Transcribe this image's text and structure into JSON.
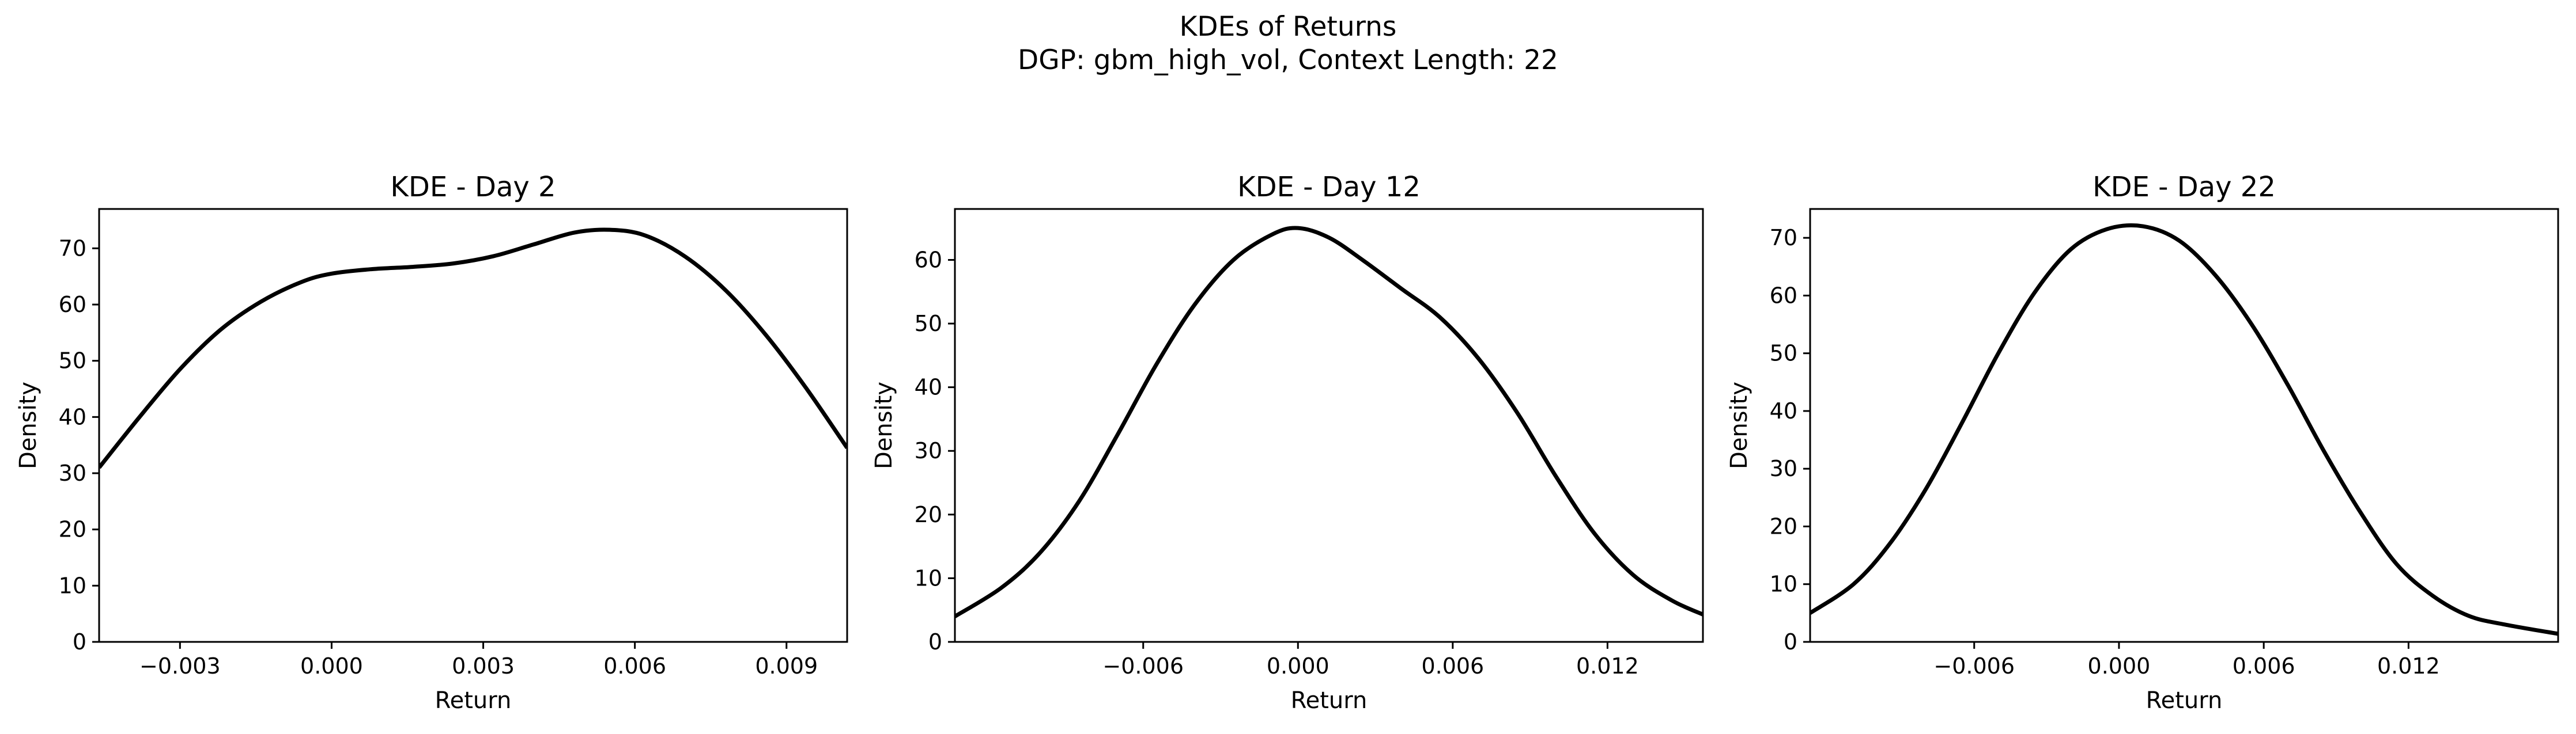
{
  "figure": {
    "title_line1": "KDEs of Returns",
    "title_line2": "DGP: gbm_high_vol, Context Length: 22"
  },
  "chart_data": [
    {
      "type": "line",
      "title": "KDE - Day 2",
      "xlabel": "Return",
      "ylabel": "Density",
      "xlim": [
        -0.0046,
        0.0102
      ],
      "ylim": [
        0,
        77
      ],
      "xticks": [
        -0.003,
        0.0,
        0.003,
        0.006,
        0.009
      ],
      "xtick_labels": [
        "−0.003",
        "0.000",
        "0.003",
        "0.006",
        "0.009"
      ],
      "yticks": [
        0,
        10,
        20,
        30,
        40,
        50,
        60,
        70
      ],
      "ytick_labels": [
        "0",
        "10",
        "20",
        "30",
        "40",
        "50",
        "60",
        "70"
      ],
      "color": "#000000",
      "series": [
        {
          "x": [
            -0.0046,
            -0.0038,
            -0.003,
            -0.0022,
            -0.0014,
            -0.0006,
            0.0,
            0.0008,
            0.0016,
            0.0024,
            0.0032,
            0.004,
            0.0048,
            0.0055,
            0.0062,
            0.007,
            0.0078,
            0.0086,
            0.0094,
            0.0102
          ],
          "y": [
            31,
            40,
            48.5,
            55.5,
            60.5,
            64,
            65.5,
            66.3,
            66.7,
            67.3,
            68.6,
            70.7,
            72.8,
            73.3,
            72.3,
            68.5,
            62.5,
            54.5,
            45,
            34.5
          ]
        }
      ]
    },
    {
      "type": "line",
      "title": "KDE - Day 12",
      "xlabel": "Return",
      "ylabel": "Density",
      "xlim": [
        -0.0133,
        0.0157
      ],
      "ylim": [
        0,
        68
      ],
      "xticks": [
        -0.006,
        0.0,
        0.006,
        0.012
      ],
      "xtick_labels": [
        "−0.006",
        "0.000",
        "0.006",
        "0.012"
      ],
      "yticks": [
        0,
        10,
        20,
        30,
        40,
        50,
        60
      ],
      "ytick_labels": [
        "0",
        "10",
        "20",
        "30",
        "40",
        "50",
        "60"
      ],
      "color": "#000000",
      "series": [
        {
          "x": [
            -0.0133,
            -0.0115,
            -0.01,
            -0.0085,
            -0.007,
            -0.0055,
            -0.004,
            -0.0025,
            -0.001,
            0.0,
            0.0012,
            0.0025,
            0.004,
            0.0055,
            0.007,
            0.0085,
            0.01,
            0.0115,
            0.013,
            0.0145,
            0.0157
          ],
          "y": [
            4,
            8.5,
            14,
            22,
            32.5,
            43.5,
            53,
            60,
            64,
            65,
            63.5,
            60,
            55.5,
            51,
            44.5,
            36,
            26,
            17,
            10.5,
            6.5,
            4.3
          ]
        }
      ]
    },
    {
      "type": "line",
      "title": "KDE - Day 22",
      "xlabel": "Return",
      "ylabel": "Density",
      "xlim": [
        -0.0128,
        0.0182
      ],
      "ylim": [
        0,
        75
      ],
      "xticks": [
        -0.006,
        0.0,
        0.006,
        0.012
      ],
      "xtick_labels": [
        "−0.006",
        "0.000",
        "0.006",
        "0.012"
      ],
      "yticks": [
        0,
        10,
        20,
        30,
        40,
        50,
        60,
        70
      ],
      "ytick_labels": [
        "0",
        "10",
        "20",
        "30",
        "40",
        "50",
        "60",
        "70"
      ],
      "color": "#000000",
      "series": [
        {
          "x": [
            -0.0128,
            -0.011,
            -0.0095,
            -0.008,
            -0.0065,
            -0.005,
            -0.0035,
            -0.002,
            -0.0005,
            0.001,
            0.0025,
            0.004,
            0.0055,
            0.007,
            0.0085,
            0.01,
            0.0115,
            0.013,
            0.0145,
            0.016,
            0.0182
          ],
          "y": [
            5,
            10,
            17,
            26.5,
            38,
            50,
            60.5,
            68,
            71.5,
            72,
            69.5,
            63.5,
            55,
            44.5,
            33,
            22.5,
            13.5,
            8,
            4.5,
            3,
            1.4
          ]
        }
      ]
    }
  ]
}
